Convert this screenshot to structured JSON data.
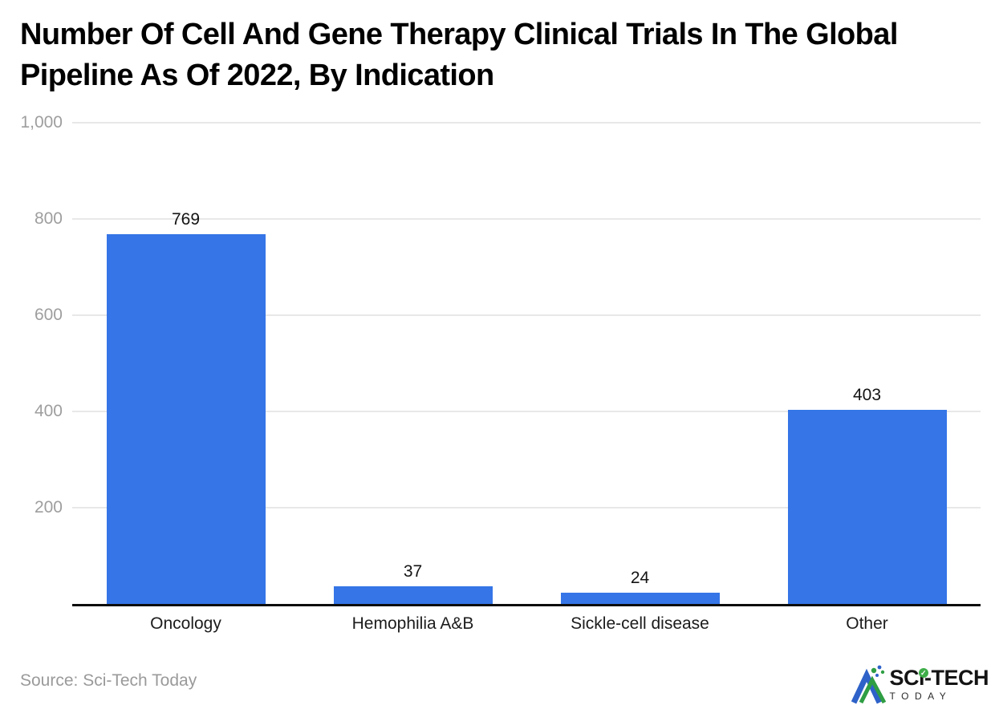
{
  "header": {
    "title": "Number Of Cell And Gene Therapy Clinical Trials In The Global Pipeline As Of 2022, By Indication"
  },
  "chart_data": {
    "type": "bar",
    "title": "Number Of Cell And Gene Therapy Clinical Trials In The Global Pipeline As Of 2022, By Indication",
    "categories": [
      "Oncology",
      "Hemophilia A&B",
      "Sickle-cell disease",
      "Other"
    ],
    "values": [
      769,
      37,
      24,
      403
    ],
    "data_labels": [
      "769",
      "37",
      "24",
      "403"
    ],
    "xlabel": "",
    "ylabel": "",
    "ylim": [
      0,
      1000
    ],
    "yticks": [
      200,
      400,
      600,
      800,
      1000
    ],
    "ytick_labels": [
      "200",
      "400",
      "600",
      "800",
      "1,000"
    ],
    "grid": true,
    "legend_position": "none",
    "bar_color": "#3575e7"
  },
  "footer": {
    "source": "Source: Sci-Tech Today",
    "logo": {
      "main": "SCi-TECH",
      "sub": "TODAY"
    }
  },
  "icons": {
    "check": "✓"
  },
  "colors": {
    "bar": "#3575e7",
    "gridline": "#e8e8e8",
    "axis_line": "#0d0d0d",
    "ytick_text": "#9e9e9e",
    "label_text": "#1c1c1c",
    "muted_text": "#9a9a9a",
    "logo_green": "#3fae49",
    "logo_blue": "#2e62c9"
  }
}
